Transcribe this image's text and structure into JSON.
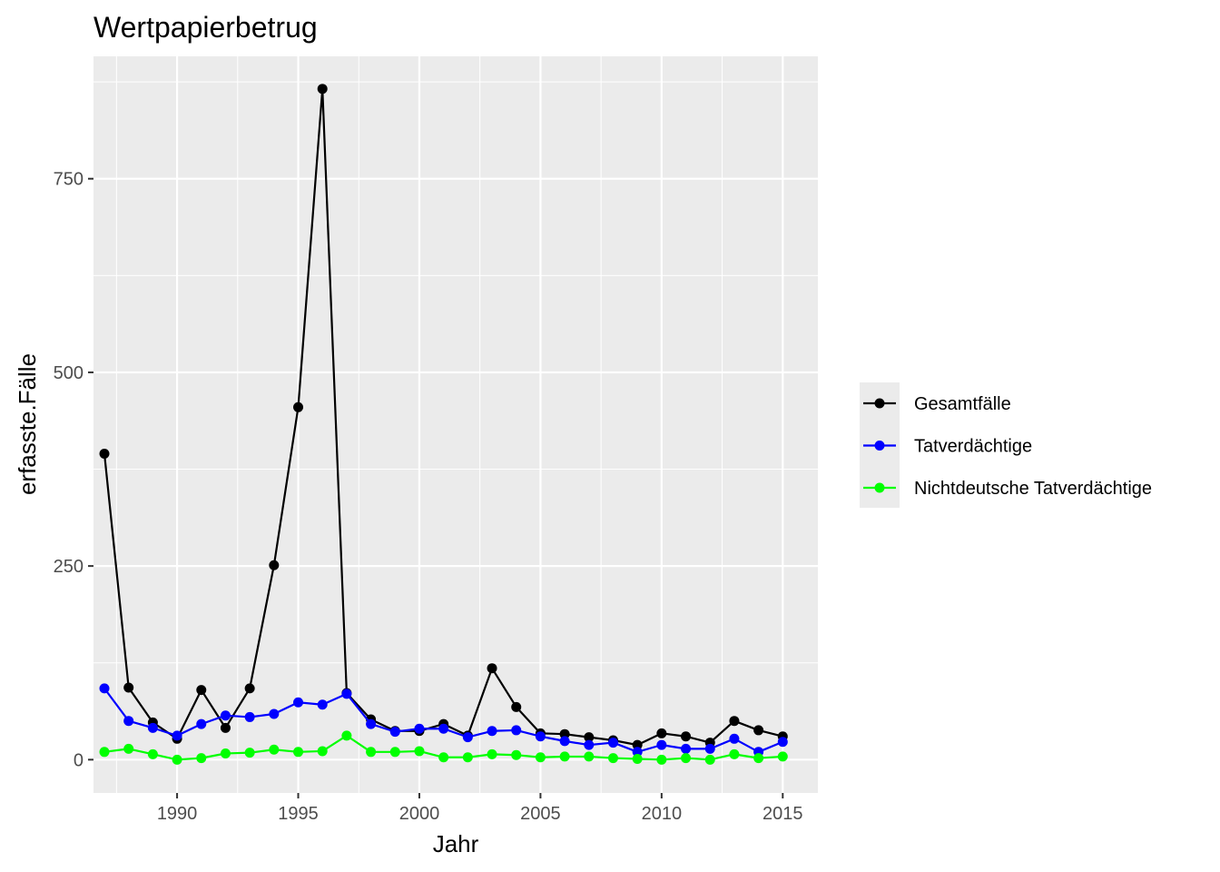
{
  "chart_data": {
    "type": "line",
    "title": "Wertpapierbetrug",
    "xlabel": "Jahr",
    "ylabel": "erfasste.Fälle",
    "xlim": [
      1986.55,
      2016.45
    ],
    "ylim": [
      -43,
      908
    ],
    "x_ticks": [
      1990,
      1995,
      2000,
      2005,
      2010,
      2015
    ],
    "x_minor_ticks": [
      1987.5,
      1992.5,
      1997.5,
      2002.5,
      2007.5,
      2012.5
    ],
    "y_ticks": [
      0,
      250,
      500,
      750
    ],
    "y_minor_ticks": [
      125,
      375,
      625,
      875
    ],
    "grid": true,
    "legend_position": "right",
    "x": [
      1987,
      1988,
      1989,
      1990,
      1991,
      1992,
      1993,
      1994,
      1995,
      1996,
      1997,
      1998,
      1999,
      2000,
      2001,
      2002,
      2003,
      2004,
      2005,
      2006,
      2007,
      2008,
      2009,
      2010,
      2011,
      2012,
      2013,
      2014,
      2015
    ],
    "series": [
      {
        "name": "Gesamtfälle",
        "color": "#000000",
        "values": [
          395,
          93,
          48,
          27,
          90,
          41,
          92,
          251,
          455,
          866,
          86,
          52,
          37,
          37,
          46,
          31,
          118,
          68,
          34,
          33,
          29,
          25,
          19,
          34,
          30,
          22,
          50,
          38,
          30
        ]
      },
      {
        "name": "Tatverdächtige",
        "color": "#0000ff",
        "values": [
          92,
          50,
          41,
          31,
          46,
          57,
          55,
          59,
          74,
          71,
          85,
          46,
          36,
          40,
          40,
          29,
          37,
          38,
          30,
          24,
          19,
          22,
          10,
          19,
          14,
          14,
          27,
          10,
          23
        ]
      },
      {
        "name": "Nichtdeutsche Tatverdächtige",
        "color": "#00ff00",
        "values": [
          10,
          14,
          7,
          0,
          2,
          8,
          9,
          13,
          10,
          11,
          31,
          10,
          10,
          11,
          3,
          3,
          7,
          6,
          3,
          4,
          4,
          2,
          1,
          0,
          2,
          0,
          7,
          2,
          4
        ]
      }
    ]
  }
}
